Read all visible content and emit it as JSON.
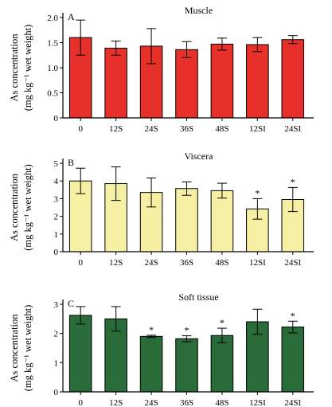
{
  "chart_data": [
    {
      "type": "bar",
      "panel_label": "A",
      "title": "Muscle",
      "ylabel_lines": [
        "As concentration",
        "(mg kg⁻¹ wet weight)"
      ],
      "categories": [
        "0",
        "12S",
        "24S",
        "36S",
        "48S",
        "12SI",
        "24SI"
      ],
      "values": [
        1.6,
        1.39,
        1.43,
        1.36,
        1.47,
        1.46,
        1.56
      ],
      "errors": [
        0.35,
        0.14,
        0.35,
        0.16,
        0.12,
        0.14,
        0.08
      ],
      "significance": [
        "",
        "",
        "",
        "",
        "",
        "",
        ""
      ],
      "ylim": [
        0,
        2.0
      ],
      "yticks": [
        0,
        0.5,
        1.0,
        1.5,
        2.0
      ],
      "ytick_labels": [
        "0",
        "0.5",
        "1.0",
        "1.5",
        "2.0"
      ],
      "bar_color": "#e8302a"
    },
    {
      "type": "bar",
      "panel_label": "B",
      "title": "Viscera",
      "ylabel_lines": [
        "As concentration",
        "(mg kg⁻¹ wet weight)"
      ],
      "categories": [
        "0",
        "12S",
        "24S",
        "36S",
        "48S",
        "12SI",
        "24SI"
      ],
      "values": [
        4.0,
        3.85,
        3.35,
        3.57,
        3.45,
        2.42,
        2.95
      ],
      "errors": [
        0.72,
        0.95,
        0.82,
        0.38,
        0.42,
        0.58,
        0.68
      ],
      "significance": [
        "",
        "",
        "",
        "",
        "",
        "*",
        "*"
      ],
      "ylim": [
        0,
        5
      ],
      "yticks": [
        0,
        1,
        2,
        3,
        4,
        5
      ],
      "ytick_labels": [
        "0",
        "1",
        "2",
        "3",
        "4",
        "5"
      ],
      "bar_color": "#f5f0a4"
    },
    {
      "type": "bar",
      "panel_label": "C",
      "title": "Soft tissue",
      "ylabel_lines": [
        "As concentration",
        "(mg kg⁻¹ wet weight)"
      ],
      "categories": [
        "0",
        "12S",
        "24S",
        "36S",
        "48S",
        "12SI",
        "24SI"
      ],
      "values": [
        2.62,
        2.5,
        1.9,
        1.82,
        1.93,
        2.4,
        2.22
      ],
      "errors": [
        0.3,
        0.42,
        0.04,
        0.1,
        0.25,
        0.43,
        0.2
      ],
      "significance": [
        "",
        "",
        "*",
        "*",
        "*",
        "",
        "*"
      ],
      "ylim": [
        0,
        3
      ],
      "yticks": [
        0,
        1,
        2,
        3
      ],
      "ytick_labels": [
        "0",
        "1",
        "2",
        "3"
      ],
      "bar_color": "#2a6b3a"
    }
  ]
}
